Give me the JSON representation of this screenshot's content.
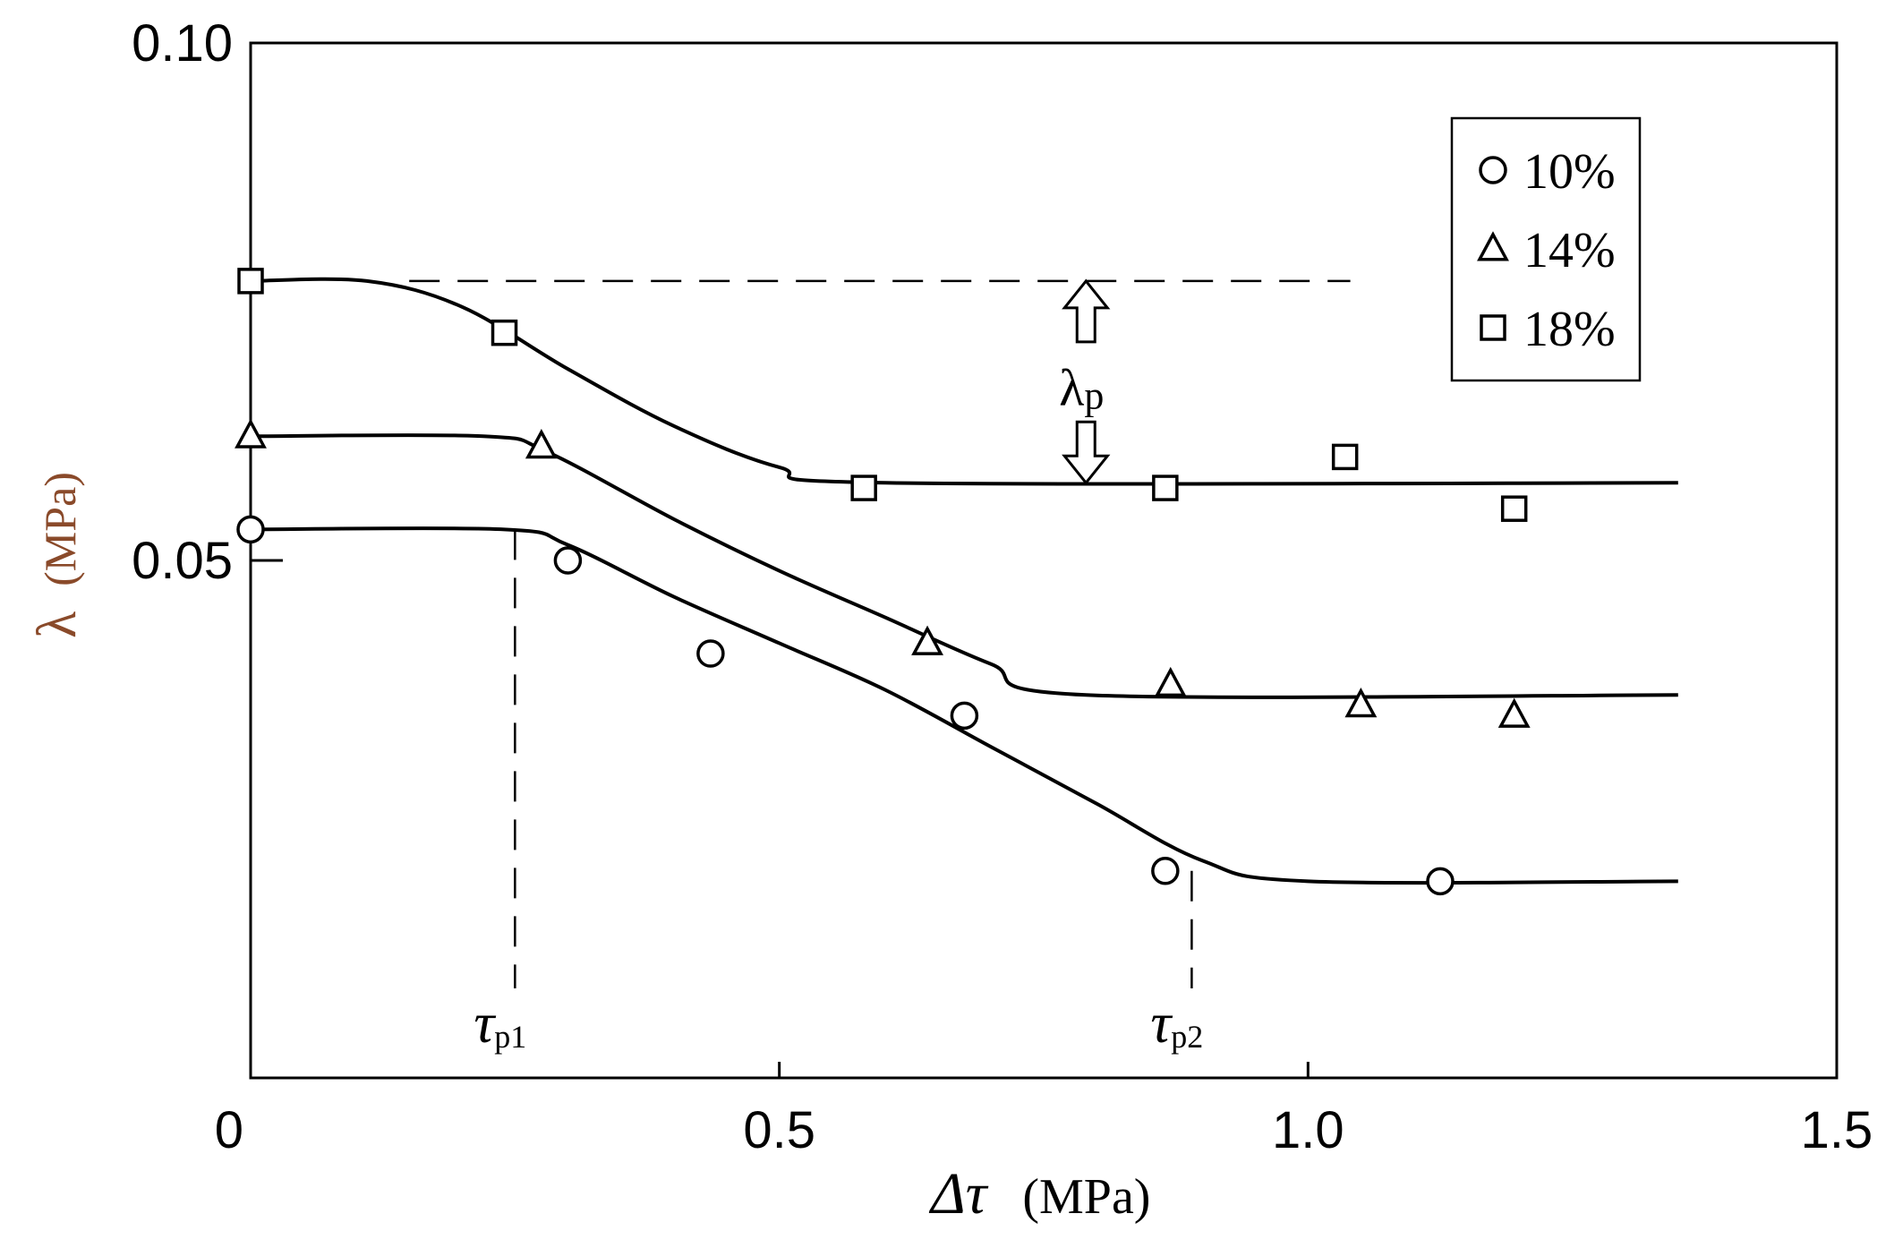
{
  "chart_data": {
    "type": "scatter",
    "title": "",
    "xlabel": {
      "symbol": "Δτ",
      "unit": "(MPa)"
    },
    "ylabel": {
      "symbol": "λ",
      "unit": "(MPa)"
    },
    "xlim": [
      0,
      1.5
    ],
    "ylim": [
      0,
      0.1
    ],
    "x_ticks": [
      {
        "value": 0,
        "label": "0"
      },
      {
        "value": 0.5,
        "label": "0.5"
      },
      {
        "value": 1.0,
        "label": "1.0"
      },
      {
        "value": 1.5,
        "label": "1.5"
      }
    ],
    "y_ticks": [
      {
        "value": 0.05,
        "label": "0.05"
      },
      {
        "value": 0.1,
        "label": "0.10"
      }
    ],
    "grid": false,
    "legend_position": "top-right",
    "series": [
      {
        "name": "10%",
        "marker": "circle",
        "points": [
          [
            0.0,
            0.053
          ],
          [
            0.3,
            0.05
          ],
          [
            0.435,
            0.041
          ],
          [
            0.675,
            0.035
          ],
          [
            0.865,
            0.02
          ],
          [
            1.125,
            0.019
          ]
        ],
        "fit_curve": [
          [
            0.0,
            0.053
          ],
          [
            0.24,
            0.053
          ],
          [
            0.3,
            0.0515
          ],
          [
            0.4,
            0.0465
          ],
          [
            0.5,
            0.042
          ],
          [
            0.6,
            0.0375
          ],
          [
            0.7,
            0.032
          ],
          [
            0.8,
            0.0265
          ],
          [
            0.9,
            0.021
          ],
          [
            1.0,
            0.019
          ],
          [
            1.35,
            0.019
          ]
        ]
      },
      {
        "name": "14%",
        "marker": "triangle",
        "points": [
          [
            0.0,
            0.062
          ],
          [
            0.275,
            0.061
          ],
          [
            0.64,
            0.042
          ],
          [
            0.87,
            0.038
          ],
          [
            1.05,
            0.036
          ],
          [
            1.195,
            0.035
          ]
        ],
        "fit_curve": [
          [
            0.0,
            0.062
          ],
          [
            0.22,
            0.062
          ],
          [
            0.28,
            0.0605
          ],
          [
            0.4,
            0.054
          ],
          [
            0.5,
            0.049
          ],
          [
            0.6,
            0.0445
          ],
          [
            0.7,
            0.04
          ],
          [
            0.79,
            0.037
          ],
          [
            1.35,
            0.037
          ]
        ]
      },
      {
        "name": "18%",
        "marker": "square",
        "points": [
          [
            0.0,
            0.077
          ],
          [
            0.24,
            0.072
          ],
          [
            0.58,
            0.057
          ],
          [
            0.865,
            0.057
          ],
          [
            1.035,
            0.06
          ],
          [
            1.195,
            0.055
          ]
        ],
        "fit_curve": [
          [
            0.0,
            0.077
          ],
          [
            0.11,
            0.077
          ],
          [
            0.2,
            0.0745
          ],
          [
            0.3,
            0.0685
          ],
          [
            0.4,
            0.063
          ],
          [
            0.5,
            0.059
          ],
          [
            0.6,
            0.0575
          ],
          [
            1.35,
            0.0575
          ]
        ]
      }
    ],
    "annotations": {
      "dashed_level": {
        "y": 0.077,
        "x_start": 0.15,
        "x_end": 1.04
      },
      "lambda_p": {
        "label": "λ",
        "subscript": "p",
        "x": 0.79,
        "y_top": 0.077,
        "y_bottom": 0.0575
      },
      "tau_p1": {
        "label": "τ",
        "subscript": "p1",
        "x": 0.25,
        "y_top": 0.053
      },
      "tau_p2": {
        "label": "τ",
        "subscript": "p2",
        "x": 0.89,
        "y_top": 0.02
      }
    }
  },
  "colors": {
    "ink": "#000000",
    "ylabel": "#8a4a2a",
    "background": "#ffffff"
  }
}
